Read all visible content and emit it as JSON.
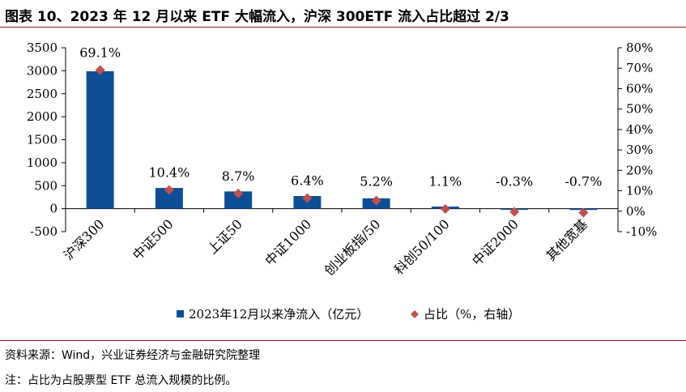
{
  "header": {
    "title": "图表 10、2023 年 12 月以来 ETF 大幅流入，沪深 300ETF 流入占比超过 2/3"
  },
  "footer": {
    "source": "资料来源：Wind，兴业证券经济与金融研究院整理",
    "note": "注：占比为占股票型 ETF 总流入规模的比例。"
  },
  "chart_data": {
    "type": "bar",
    "categories": [
      "沪深300",
      "中证500",
      "上证50",
      "中证1000",
      "创业板指/50",
      "科创50/100",
      "中证2000",
      "其他宽基"
    ],
    "series": [
      {
        "name": "2023年12月以来净流入（亿元）",
        "type": "bar",
        "axis": "left",
        "color": "#0e4e96",
        "values": [
          2990,
          450,
          375,
          275,
          225,
          45,
          -12,
          -28
        ]
      },
      {
        "name": "占比（%，右轴）",
        "type": "scatter",
        "marker": "diamond",
        "axis": "right",
        "color": "#c0504d",
        "values": [
          69.1,
          10.4,
          8.7,
          6.4,
          5.2,
          1.1,
          -0.3,
          -0.7
        ],
        "labels": [
          "69.1%",
          "10.4%",
          "8.7%",
          "6.4%",
          "5.2%",
          "1.1%",
          "-0.3%",
          "-0.7%"
        ]
      }
    ],
    "y_left": {
      "lim": [
        -500,
        3500
      ],
      "ticks": [
        -500,
        0,
        500,
        1000,
        1500,
        2000,
        2500,
        3000,
        3500
      ]
    },
    "y_right": {
      "lim": [
        -10,
        80
      ],
      "ticks": [
        -10,
        0,
        10,
        20,
        30,
        40,
        50,
        60,
        70,
        80
      ],
      "tick_labels": [
        "-10%",
        "0%",
        "10%",
        "20%",
        "30%",
        "40%",
        "50%",
        "60%",
        "70%",
        "80%"
      ]
    },
    "grid": false,
    "legend": "bottom"
  }
}
